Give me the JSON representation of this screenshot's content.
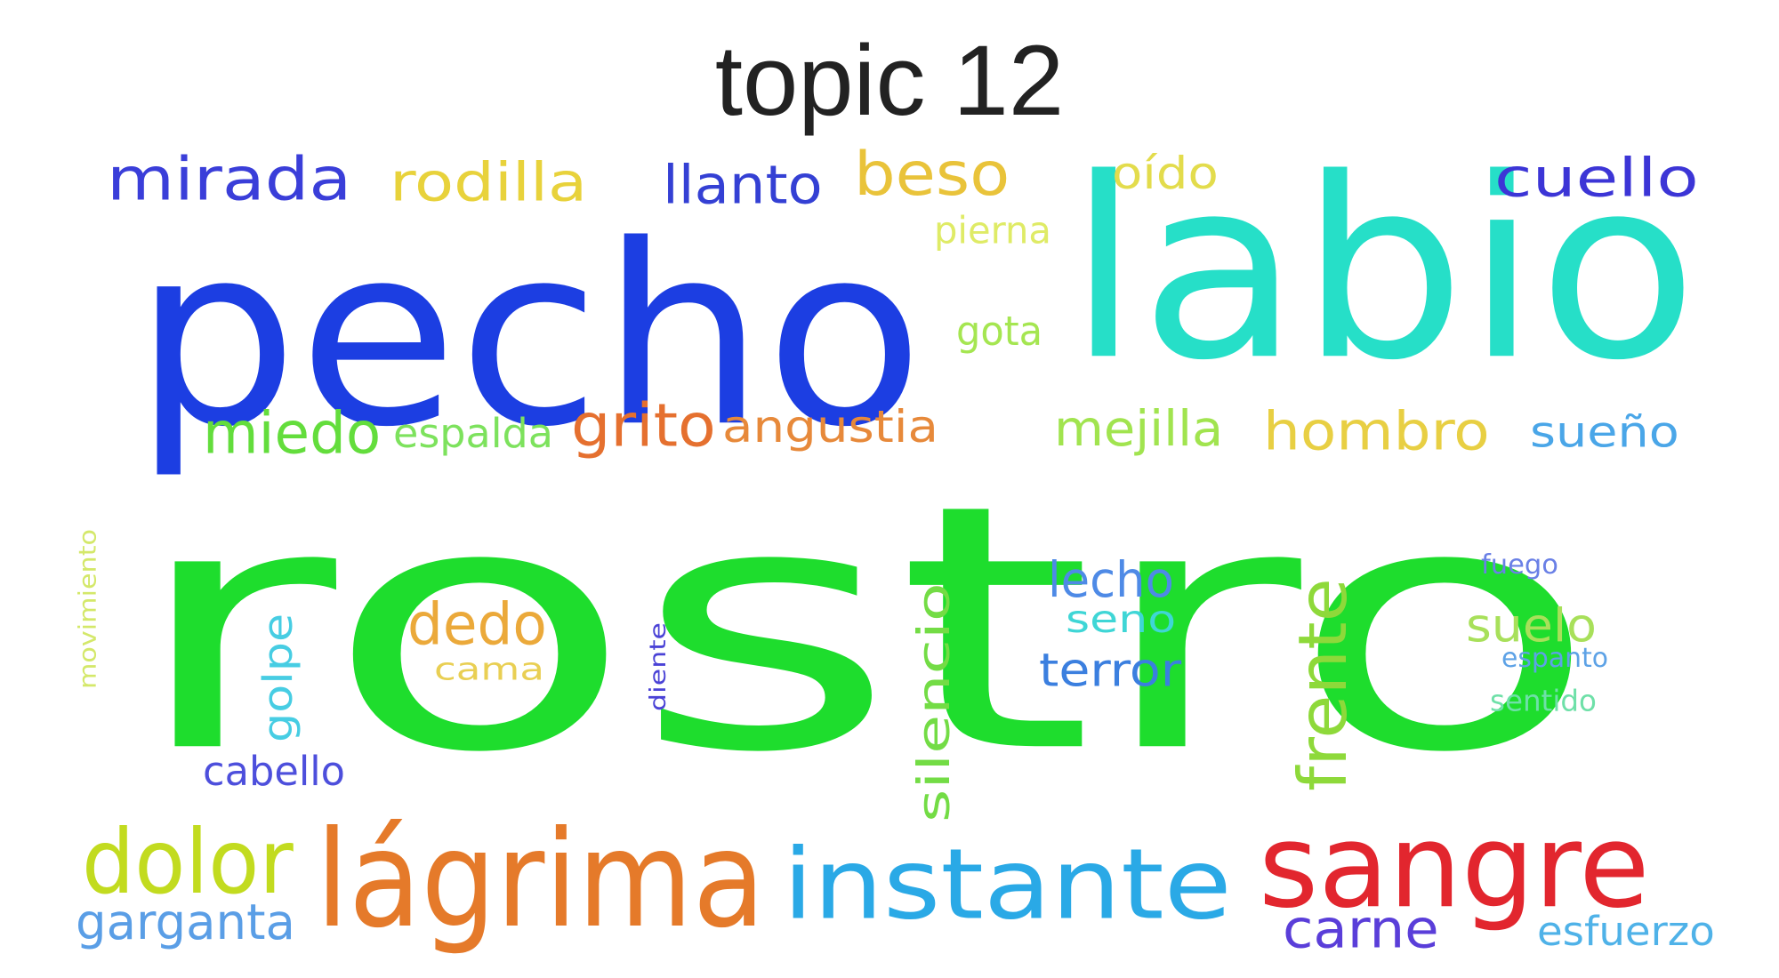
{
  "title": "topic 12",
  "words": [
    {
      "text": "rostro",
      "color": "#1edd2d",
      "rotated": false
    },
    {
      "text": "pecho",
      "color": "#1c3ee2",
      "rotated": false
    },
    {
      "text": "labio",
      "color": "#26dfc8",
      "rotated": false
    },
    {
      "text": "lágrima",
      "color": "#e57a2a",
      "rotated": false
    },
    {
      "text": "instante",
      "color": "#2aa9e6",
      "rotated": false
    },
    {
      "text": "sangre",
      "color": "#e2262e",
      "rotated": false
    },
    {
      "text": "dolor",
      "color": "#c2db1f",
      "rotated": false
    },
    {
      "text": "mirada",
      "color": "#3a3ed9",
      "rotated": false
    },
    {
      "text": "rodilla",
      "color": "#e8d23b",
      "rotated": false
    },
    {
      "text": "llanto",
      "color": "#3440d4",
      "rotated": false
    },
    {
      "text": "beso",
      "color": "#e9c33a",
      "rotated": false
    },
    {
      "text": "oído",
      "color": "#e3dc4c",
      "rotated": false
    },
    {
      "text": "cuello",
      "color": "#3c35d6",
      "rotated": false
    },
    {
      "text": "pierna",
      "color": "#dfeb66",
      "rotated": false
    },
    {
      "text": "gota",
      "color": "#a5e651",
      "rotated": false
    },
    {
      "text": "miedo",
      "color": "#63dd3c",
      "rotated": false
    },
    {
      "text": "espalda",
      "color": "#7de25d",
      "rotated": false
    },
    {
      "text": "grito",
      "color": "#e5702f",
      "rotated": false
    },
    {
      "text": "angustia",
      "color": "#e7893a",
      "rotated": false
    },
    {
      "text": "mejilla",
      "color": "#a1e44f",
      "rotated": false
    },
    {
      "text": "hombro",
      "color": "#e8cf43",
      "rotated": false
    },
    {
      "text": "sueño",
      "color": "#4aa6e8",
      "rotated": false
    },
    {
      "text": "dedo",
      "color": "#eba93a",
      "rotated": false
    },
    {
      "text": "cama",
      "color": "#e9cf53",
      "rotated": false
    },
    {
      "text": "lecho",
      "color": "#4e8ae6",
      "rotated": false
    },
    {
      "text": "seno",
      "color": "#3fd6d6",
      "rotated": false
    },
    {
      "text": "terror",
      "color": "#3b7fdf",
      "rotated": false
    },
    {
      "text": "silencio",
      "color": "#73dc45",
      "rotated": true
    },
    {
      "text": "frente",
      "color": "#8ed93a",
      "rotated": true
    },
    {
      "text": "golpe",
      "color": "#47cde3",
      "rotated": true
    },
    {
      "text": "cabello",
      "color": "#4d4fdc",
      "rotated": false
    },
    {
      "text": "movimiento",
      "color": "#d4e86a",
      "rotated": true
    },
    {
      "text": "diente",
      "color": "#4a42d6",
      "rotated": true
    },
    {
      "text": "fuego",
      "color": "#6a80e6",
      "rotated": false
    },
    {
      "text": "suelo",
      "color": "#a8e05a",
      "rotated": false
    },
    {
      "text": "espanto",
      "color": "#5da2e6",
      "rotated": false
    },
    {
      "text": "sentido",
      "color": "#6ee0a8",
      "rotated": false
    },
    {
      "text": "garganta",
      "color": "#5a9ee6",
      "rotated": false
    },
    {
      "text": "carne",
      "color": "#5a3ed9",
      "rotated": false
    },
    {
      "text": "esfuerzo",
      "color": "#4fb2e8",
      "rotated": false
    }
  ]
}
